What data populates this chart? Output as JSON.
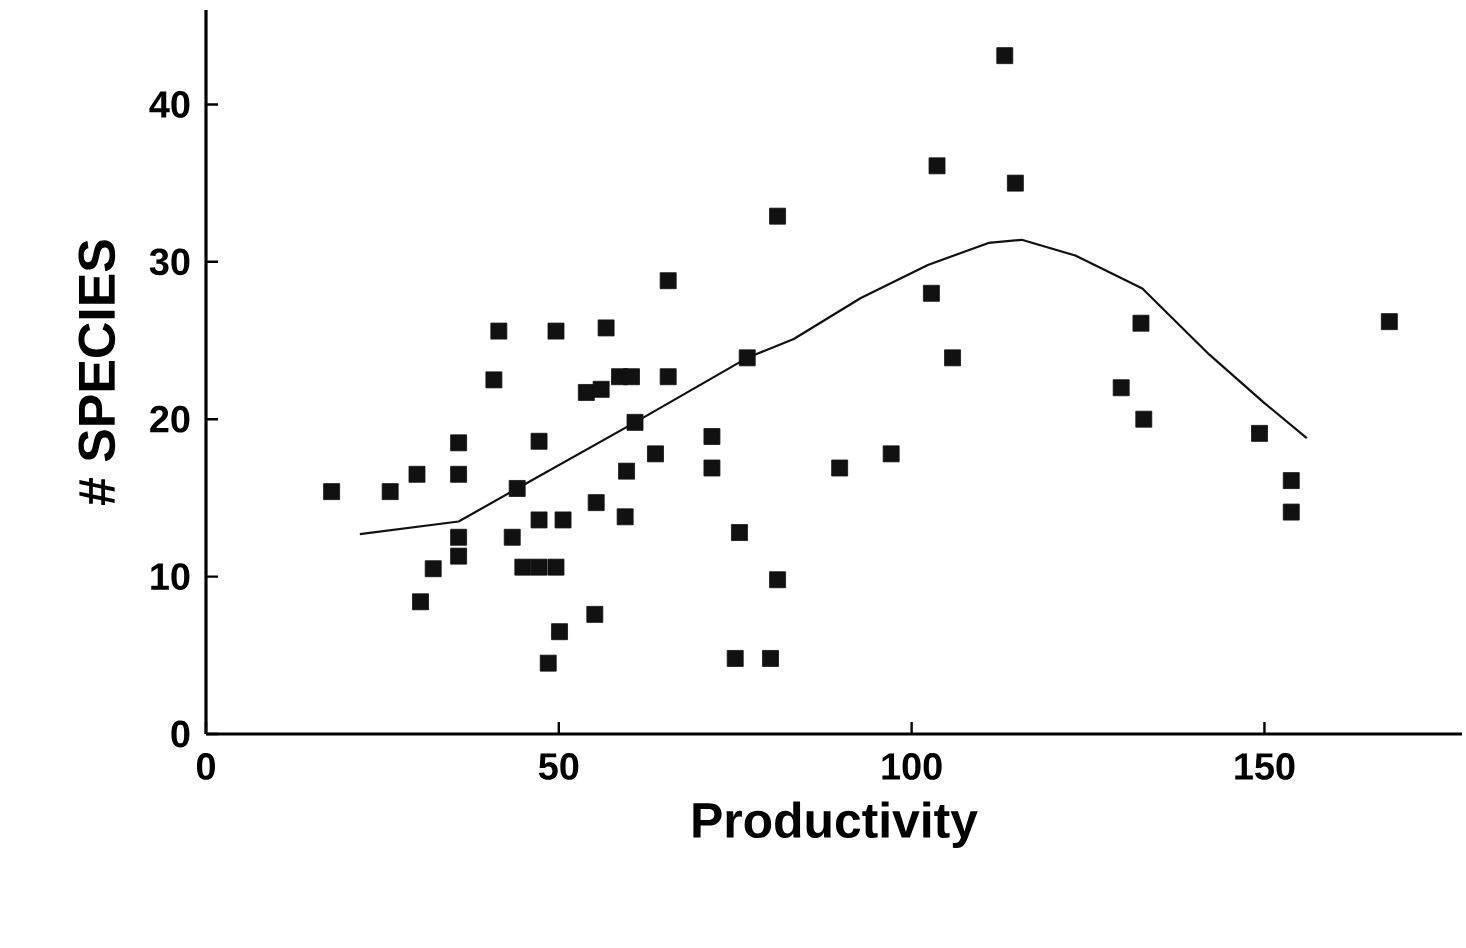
{
  "chart_data": {
    "type": "scatter",
    "xlabel": "Productivity",
    "ylabel": "# SPECIES",
    "xlim": [
      0,
      178
    ],
    "ylim": [
      0,
      46
    ],
    "xticks": [
      0,
      50,
      100,
      150
    ],
    "yticks": [
      0,
      10,
      20,
      30,
      40
    ],
    "grid": false,
    "marker": "square",
    "series": [
      {
        "color": "#111111",
        "x": [
          17.8,
          26.1,
          29.9,
          35.8,
          35.8,
          35.8,
          35.8,
          32.2,
          30.4,
          40.8,
          41.5,
          49.6,
          56.7,
          53.9,
          56.0,
          58.6,
          60.3,
          65.5,
          65.5,
          81.0,
          76.7,
          60.8,
          47.2,
          44.1,
          63.7,
          59.6,
          71.7,
          71.7,
          55.3,
          59.4,
          47.2,
          50.6,
          43.4,
          44.9,
          47.2,
          49.6,
          75.6,
          81.0,
          55.1,
          50.1,
          48.5,
          75.0,
          80.0,
          113.2,
          103.6,
          114.7,
          102.8,
          105.8,
          97.1,
          89.8,
          132.5,
          129.7,
          132.9,
          149.3,
          153.8,
          153.8,
          167.7
        ],
        "values": [
          15.4,
          15.4,
          16.5,
          18.5,
          16.5,
          12.5,
          11.3,
          10.5,
          8.4,
          22.5,
          25.6,
          25.6,
          25.8,
          21.7,
          21.9,
          22.7,
          22.7,
          22.7,
          28.8,
          32.9,
          23.9,
          19.8,
          18.6,
          15.6,
          17.8,
          16.7,
          18.9,
          16.9,
          14.7,
          13.8,
          13.6,
          13.6,
          12.5,
          10.6,
          10.6,
          10.6,
          12.8,
          9.8,
          7.6,
          6.5,
          4.5,
          4.8,
          4.8,
          43.1,
          36.1,
          35.0,
          28.0,
          23.9,
          17.8,
          16.9,
          26.1,
          22.0,
          20.0,
          19.1,
          16.1,
          14.1,
          26.2
        ]
      },
      {
        "type": "line",
        "color": "#111111",
        "marker": "none",
        "line_style": "solid",
        "x": [
          21.8,
          35.8,
          44.1,
          60.8,
          76.7,
          83.3,
          92.8,
          102.3,
          110.9,
          115.6,
          123.2,
          132.7,
          142.2,
          149.8,
          156.0
        ],
        "values": [
          12.7,
          13.5,
          15.6,
          19.8,
          23.9,
          25.1,
          27.7,
          29.8,
          31.2,
          31.4,
          30.4,
          28.3,
          24.1,
          21.1,
          18.8
        ]
      }
    ]
  }
}
